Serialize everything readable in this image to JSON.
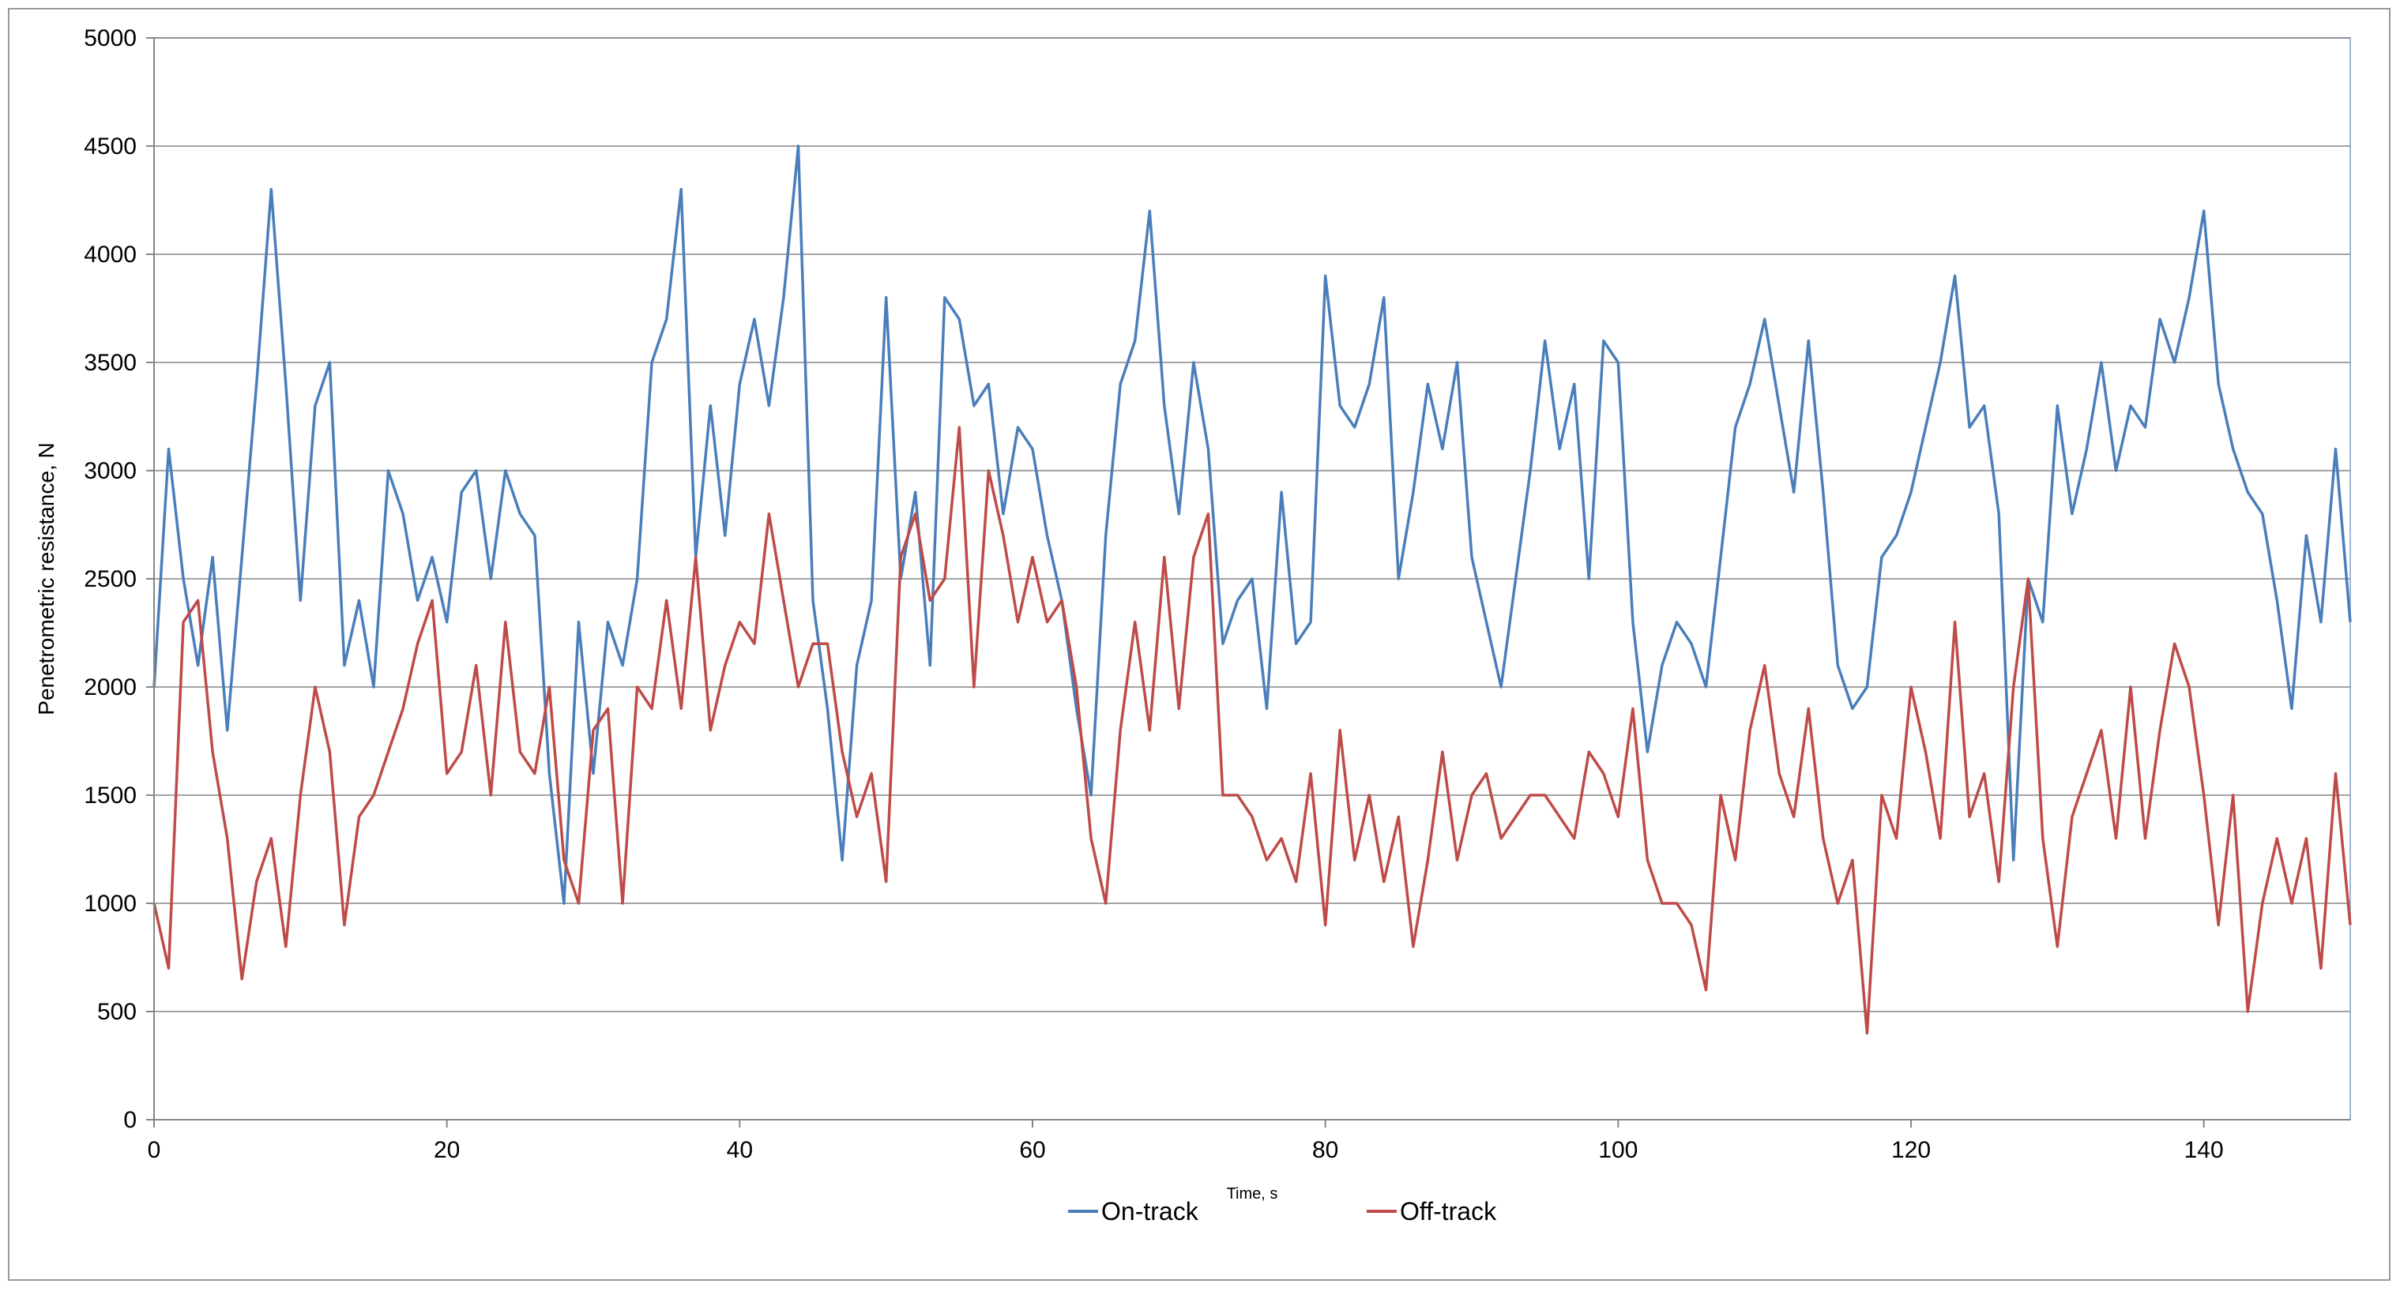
{
  "chart_data": {
    "type": "line",
    "title": "",
    "xlabel": "Time, s",
    "ylabel": "Penetrometric resistance, N",
    "xlim": [
      0,
      150
    ],
    "ylim": [
      0,
      5000
    ],
    "xticks": [
      0,
      20,
      40,
      60,
      80,
      100,
      120,
      140
    ],
    "yticks": [
      0,
      500,
      1000,
      1500,
      2000,
      2500,
      3000,
      3500,
      4000,
      4500,
      5000
    ],
    "grid": "horizontal",
    "legend_position": "bottom-center",
    "series": [
      {
        "name": "On-track",
        "color": "#4a7ebb",
        "x": [
          0,
          1,
          2,
          3,
          4,
          5,
          6,
          7,
          8,
          9,
          10,
          11,
          12,
          13,
          14,
          15,
          16,
          17,
          18,
          19,
          20,
          21,
          22,
          23,
          24,
          25,
          26,
          27,
          28,
          29,
          30,
          31,
          32,
          33,
          34,
          35,
          36,
          37,
          38,
          39,
          40,
          41,
          42,
          43,
          44,
          45,
          46,
          47,
          48,
          49,
          50,
          51,
          52,
          53,
          54,
          55,
          56,
          57,
          58,
          59,
          60,
          61,
          62,
          63,
          64,
          65,
          66,
          67,
          68,
          69,
          70,
          71,
          72,
          73,
          74,
          75,
          76,
          77,
          78,
          79,
          80,
          81,
          82,
          83,
          84,
          85,
          86,
          87,
          88,
          89,
          90,
          91,
          92,
          93,
          94,
          95,
          96,
          97,
          98,
          99,
          100,
          101,
          102,
          103,
          104,
          105,
          106,
          107,
          108,
          109,
          110,
          111,
          112,
          113,
          114,
          115,
          116,
          117,
          118,
          119,
          120,
          121,
          122,
          123,
          124,
          125,
          126,
          127,
          128,
          129,
          130,
          131,
          132,
          133,
          134,
          135,
          136,
          137,
          138,
          139,
          140,
          141,
          142,
          143,
          144,
          145,
          146,
          147,
          148,
          149,
          150
        ],
        "values": [
          2000,
          3100,
          2500,
          2100,
          2600,
          1800,
          2600,
          3400,
          4300,
          3400,
          2400,
          3300,
          3500,
          2100,
          2400,
          2000,
          3000,
          2800,
          2400,
          2600,
          2300,
          2900,
          3000,
          2500,
          3000,
          2800,
          2700,
          1600,
          1000,
          2300,
          1600,
          2300,
          2100,
          2500,
          3500,
          3700,
          4300,
          2600,
          3300,
          2700,
          3400,
          3700,
          3300,
          3800,
          4500,
          2400,
          1900,
          1200,
          2100,
          2400,
          3800,
          2500,
          2900,
          2100,
          3800,
          3700,
          3300,
          3400,
          2800,
          3200,
          3100,
          2700,
          2400,
          1900,
          1500,
          2700,
          3400,
          3600,
          4200,
          3300,
          2800,
          3500,
          3100,
          2200,
          2400,
          2500,
          1900,
          2900,
          2200,
          2300,
          3900,
          3300,
          3200,
          3400,
          3800,
          2500,
          2900,
          3400,
          3100,
          3500,
          2600,
          2300,
          2000,
          2500,
          3000,
          3600,
          3100,
          3400,
          2500,
          3600,
          3500,
          2300,
          1700,
          2100,
          2300,
          2200,
          2000,
          2600,
          3200,
          3400,
          3700,
          3300,
          2900,
          3600,
          2900,
          2100,
          1900,
          2000,
          2600,
          2700,
          2900,
          3200,
          3500,
          3900,
          3200,
          3300,
          2800,
          1200,
          2500,
          2300,
          3300,
          2800,
          3100,
          3500,
          3000,
          3300,
          3200,
          3700,
          3500,
          3800,
          4200,
          3400,
          3100,
          2900,
          2800,
          2400,
          1900,
          2700,
          2300,
          3100,
          2300
        ]
      },
      {
        "name": "Off-track",
        "color": "#be4b48",
        "x": [
          0,
          1,
          2,
          3,
          4,
          5,
          6,
          7,
          8,
          9,
          10,
          11,
          12,
          13,
          14,
          15,
          16,
          17,
          18,
          19,
          20,
          21,
          22,
          23,
          24,
          25,
          26,
          27,
          28,
          29,
          30,
          31,
          32,
          33,
          34,
          35,
          36,
          37,
          38,
          39,
          40,
          41,
          42,
          43,
          44,
          45,
          46,
          47,
          48,
          49,
          50,
          51,
          52,
          53,
          54,
          55,
          56,
          57,
          58,
          59,
          60,
          61,
          62,
          63,
          64,
          65,
          66,
          67,
          68,
          69,
          70,
          71,
          72,
          73,
          74,
          75,
          76,
          77,
          78,
          79,
          80,
          81,
          82,
          83,
          84,
          85,
          86,
          87,
          88,
          89,
          90,
          91,
          92,
          93,
          94,
          95,
          96,
          97,
          98,
          99,
          100,
          101,
          102,
          103,
          104,
          105,
          106,
          107,
          108,
          109,
          110,
          111,
          112,
          113,
          114,
          115,
          116,
          117,
          118,
          119,
          120,
          121,
          122,
          123,
          124,
          125,
          126,
          127,
          128,
          129,
          130,
          131,
          132,
          133,
          134,
          135,
          136,
          137,
          138,
          139,
          140,
          141,
          142,
          143,
          144,
          145,
          146,
          147,
          148,
          149,
          150
        ],
        "values": [
          1000,
          700,
          2300,
          2400,
          1700,
          1300,
          650,
          1100,
          1300,
          800,
          1500,
          2000,
          1700,
          900,
          1400,
          1500,
          1700,
          1900,
          2200,
          2400,
          1600,
          1700,
          2100,
          1500,
          2300,
          1700,
          1600,
          2000,
          1200,
          1000,
          1800,
          1900,
          1000,
          2000,
          1900,
          2400,
          1900,
          2600,
          1800,
          2100,
          2300,
          2200,
          2800,
          2400,
          2000,
          2200,
          2200,
          1700,
          1400,
          1600,
          1100,
          2600,
          2800,
          2400,
          2500,
          3200,
          2000,
          3000,
          2700,
          2300,
          2600,
          2300,
          2400,
          2000,
          1300,
          1000,
          1800,
          2300,
          1800,
          2600,
          1900,
          2600,
          2800,
          1500,
          1500,
          1400,
          1200,
          1300,
          1100,
          1600,
          900,
          1800,
          1200,
          1500,
          1100,
          1400,
          800,
          1200,
          1700,
          1200,
          1500,
          1600,
          1300,
          1400,
          1500,
          1500,
          1400,
          1300,
          1700,
          1600,
          1400,
          1900,
          1200,
          1000,
          1000,
          900,
          600,
          1500,
          1200,
          1800,
          2100,
          1600,
          1400,
          1900,
          1300,
          1000,
          1200,
          400,
          1500,
          1300,
          2000,
          1700,
          1300,
          2300,
          1400,
          1600,
          1100,
          2000,
          2500,
          1300,
          800,
          1400,
          1600,
          1800,
          1300,
          2000,
          1300,
          1800,
          2200,
          2000,
          1500,
          900,
          1500,
          500,
          1000,
          1300,
          1000,
          1300,
          700,
          1600,
          900
        ]
      }
    ],
    "legend": [
      "On-track",
      "Off-track"
    ]
  }
}
